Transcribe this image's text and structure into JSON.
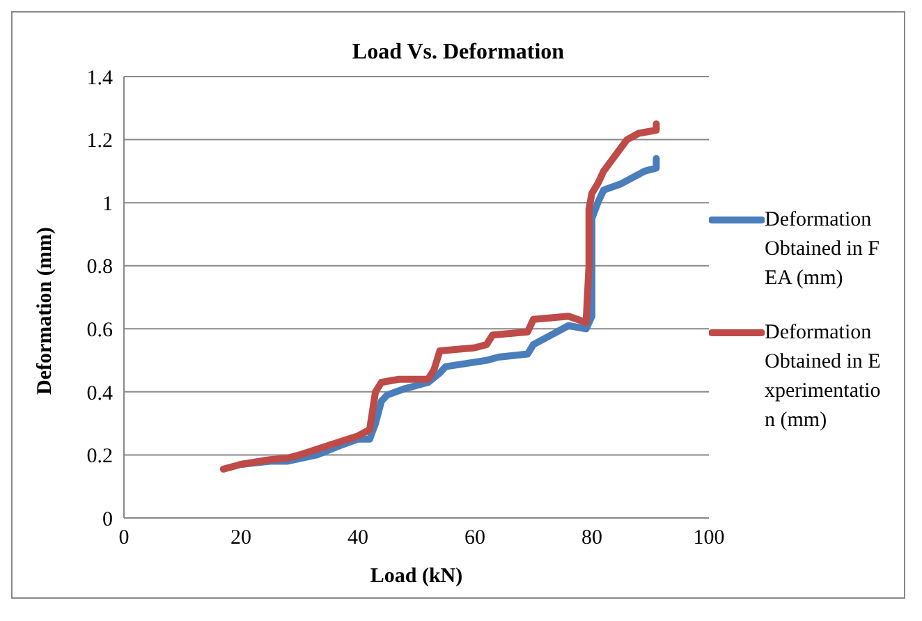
{
  "chart_data": {
    "type": "line",
    "title": "Load Vs. Deformation",
    "xlabel": "Load (kN)",
    "ylabel": "Deformation (mm)",
    "xlim": [
      0,
      100
    ],
    "xticks": [
      0,
      20,
      40,
      60,
      80,
      100
    ],
    "ylim": [
      0,
      1.4
    ],
    "yticks": [
      0,
      0.2,
      0.4,
      0.6,
      0.8,
      1,
      1.2,
      1.4
    ],
    "grid": "y",
    "legend": "right",
    "marker": "none",
    "line_style": "solid",
    "series": [
      {
        "name": "Deformation Obtained in FEA (mm)",
        "color": "#4a7ebb",
        "x": [
          20,
          25,
          28,
          33,
          37,
          40,
          42,
          43,
          44,
          45,
          48,
          52,
          54,
          55,
          62,
          64,
          69,
          70,
          73,
          76,
          79,
          80,
          80,
          81,
          82,
          85,
          87,
          89,
          91,
          91
        ],
        "values": [
          0.17,
          0.18,
          0.18,
          0.2,
          0.23,
          0.25,
          0.25,
          0.3,
          0.37,
          0.39,
          0.41,
          0.43,
          0.46,
          0.48,
          0.5,
          0.51,
          0.52,
          0.55,
          0.58,
          0.61,
          0.6,
          0.64,
          0.95,
          1.0,
          1.04,
          1.06,
          1.08,
          1.1,
          1.11,
          1.14
        ]
      },
      {
        "name": "Deformation Obtained in Experimentation (mm)",
        "color": "#be4b48",
        "x": [
          17,
          20,
          25,
          28,
          30,
          35,
          40,
          42,
          43,
          44,
          47,
          52,
          53,
          54,
          60,
          62,
          63,
          69,
          70,
          76,
          79,
          79.5,
          79.5,
          80,
          81,
          82,
          84,
          86,
          88,
          91,
          91
        ],
        "values": [
          0.155,
          0.17,
          0.185,
          0.19,
          0.2,
          0.23,
          0.26,
          0.28,
          0.4,
          0.43,
          0.44,
          0.44,
          0.47,
          0.53,
          0.54,
          0.55,
          0.58,
          0.59,
          0.63,
          0.64,
          0.62,
          0.8,
          0.98,
          1.03,
          1.06,
          1.1,
          1.15,
          1.2,
          1.22,
          1.23,
          1.25
        ]
      }
    ]
  }
}
